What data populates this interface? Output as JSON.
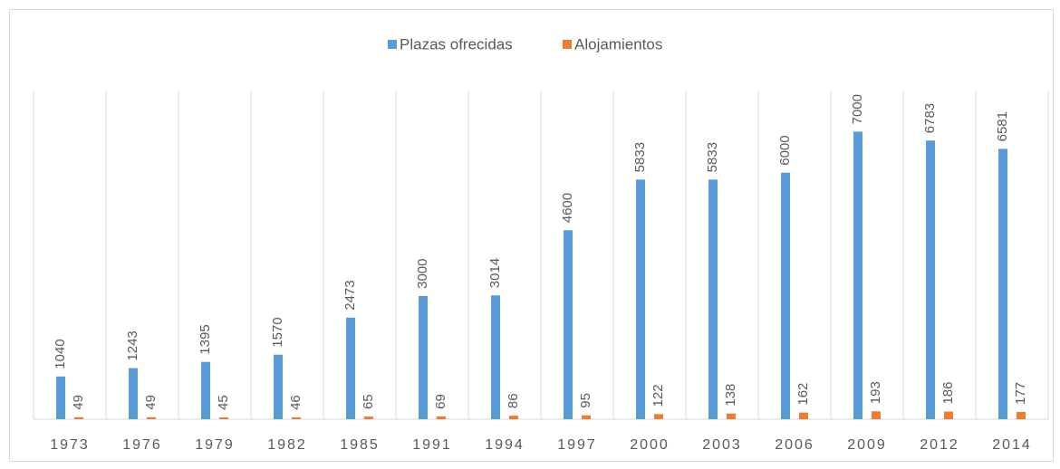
{
  "chart_data": {
    "type": "bar",
    "categories": [
      "1973",
      "1976",
      "1979",
      "1982",
      "1985",
      "1991",
      "1994",
      "1997",
      "2000",
      "2003",
      "2006",
      "2009",
      "2012",
      "2014"
    ],
    "series": [
      {
        "name": "Plazas ofrecidas",
        "color": "#5b9bd5",
        "values": [
          1040,
          1243,
          1395,
          1570,
          2473,
          3000,
          3014,
          4600,
          5833,
          5833,
          6000,
          7000,
          6783,
          6581
        ]
      },
      {
        "name": "Alojamientos",
        "color": "#ed7d31",
        "values": [
          49,
          49,
          45,
          46,
          65,
          69,
          86,
          95,
          122,
          138,
          162,
          193,
          186,
          177
        ]
      }
    ],
    "ylim": [
      0,
      8000
    ],
    "legend": "top"
  }
}
